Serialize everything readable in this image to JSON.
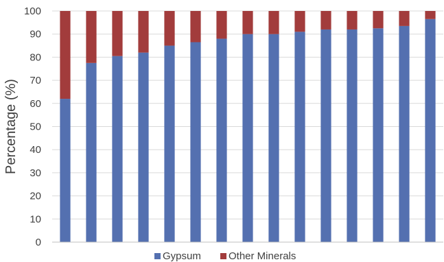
{
  "chart_data": {
    "type": "bar",
    "stacked": true,
    "title": "",
    "xlabel": "",
    "ylabel": "Percentage (%)",
    "ylim": [
      0,
      100
    ],
    "yticks": [
      0,
      10,
      20,
      30,
      40,
      50,
      60,
      70,
      80,
      90,
      100
    ],
    "grid": true,
    "legend_position": "bottom",
    "categories": [
      "",
      "",
      "",
      "",
      "",
      "",
      "",
      "",
      "",
      "",
      "",
      "",
      "",
      "",
      ""
    ],
    "series": [
      {
        "name": "Gypsum",
        "color": "#5470B0",
        "values": [
          62,
          77.5,
          80.5,
          82,
          85,
          86.5,
          88,
          90,
          90,
          91,
          92,
          92,
          92.5,
          93.5,
          96.5
        ]
      },
      {
        "name": "Other Minerals",
        "color": "#A23C3C",
        "values": [
          38,
          22.5,
          19.5,
          18,
          15,
          13.5,
          12,
          10,
          10,
          9,
          8,
          8,
          7.5,
          6.5,
          3.5
        ]
      }
    ]
  }
}
